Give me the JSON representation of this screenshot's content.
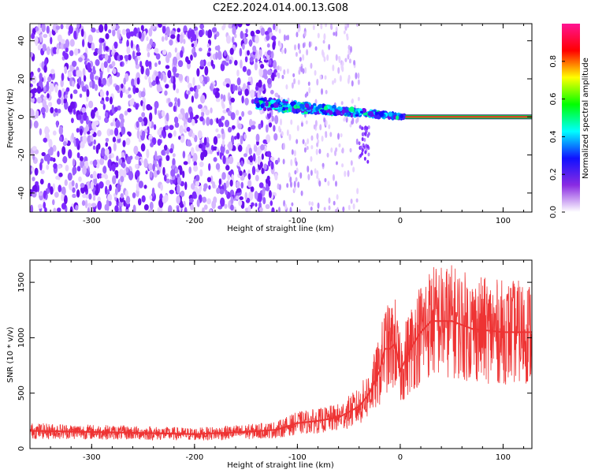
{
  "title": "C2E2.2024.014.00.13.G08",
  "chart_data": [
    {
      "type": "heatmap",
      "xlabel": "Height of straight line (km)",
      "ylabel": "Frequency (Hz)",
      "xlim": [
        -360,
        128
      ],
      "ylim": [
        -50,
        49
      ],
      "x_ticks": [
        -300,
        -200,
        -100,
        0,
        100
      ],
      "y_ticks": [
        -40,
        -20,
        0,
        20,
        40
      ],
      "colorbar": {
        "label": "Normalized spectral amplitude",
        "range": [
          0,
          1
        ],
        "ticks": [
          0.0,
          0.2,
          0.4,
          0.6,
          0.8
        ],
        "tick_labels": [
          "0.0",
          "0.2",
          "0.4",
          "0.6",
          "0.8"
        ],
        "colors": [
          "#ffffff",
          "#8a2be2",
          "#1010ff",
          "#00ffff",
          "#00ff00",
          "#ffff00",
          "#ff0000",
          "#ff1493"
        ]
      },
      "features": {
        "noise_region_x": [
          -360,
          -120
        ],
        "sparse_region_x": [
          -120,
          -40
        ],
        "signal_onset_x": -140,
        "carrier_line_start_x": 5,
        "carrier_frequency_hz": 0
      }
    },
    {
      "type": "line",
      "xlabel": "Height of straight line (km)",
      "ylabel": "SNR (10 * v/v)",
      "xlim": [
        -360,
        128
      ],
      "ylim": [
        0,
        1700
      ],
      "x_ticks": [
        -300,
        -200,
        -100,
        0,
        100
      ],
      "y_ticks": [
        0,
        500,
        1000,
        1500
      ],
      "series": [
        {
          "color": "#ee3333",
          "points": [
            [
              -360,
              160
            ],
            [
              -300,
              150
            ],
            [
              -250,
              140
            ],
            [
              -200,
              130
            ],
            [
              -150,
              150
            ],
            [
              -120,
              170
            ],
            [
              -100,
              230
            ],
            [
              -80,
              250
            ],
            [
              -60,
              280
            ],
            [
              -40,
              380
            ],
            [
              -30,
              500
            ],
            [
              -20,
              700
            ],
            [
              -15,
              900
            ],
            [
              -10,
              900
            ],
            [
              -5,
              950
            ],
            [
              0,
              700
            ],
            [
              10,
              900
            ],
            [
              20,
              1050
            ],
            [
              30,
              1150
            ],
            [
              50,
              1150
            ],
            [
              70,
              1080
            ],
            [
              100,
              1050
            ],
            [
              128,
              1050
            ]
          ]
        }
      ]
    }
  ]
}
